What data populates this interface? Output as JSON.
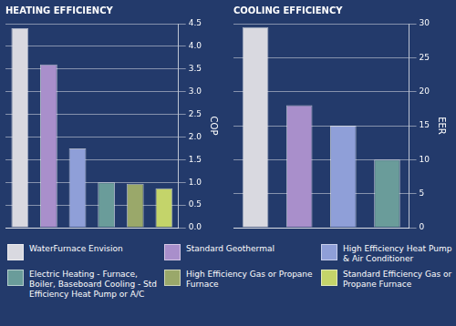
{
  "chart_data": [
    {
      "type": "bar",
      "title": "HEATING EFFICIENCY",
      "y_label": "COP",
      "categories": [
        "WaterFurnace Envision",
        "Standard Geothermal",
        "High Efficiency Heat Pump & Air Conditioner",
        "Electric Heating - Furnace, Boiler, Baseboard Cooling - Std Efficiency Heat Pump or A/C",
        "High Efficiency Gas or Propane Furnace",
        "Standard Efficiency Gas or Propane Furnace"
      ],
      "values": [
        4.4,
        3.6,
        1.75,
        1.0,
        0.97,
        0.87
      ],
      "colors": [
        "#d9d9e0",
        "#a98fcb",
        "#8f9fd8",
        "#6a9c9a",
        "#9aa86a",
        "#c4d46a"
      ],
      "ylim": [
        0,
        4.5
      ],
      "yticks": [
        {
          "value": 0,
          "label": "0.0"
        },
        0.5,
        {
          "value": 1,
          "label": "1.0"
        },
        1.5,
        {
          "value": 2,
          "label": "2.0"
        },
        2.5,
        {
          "value": 3,
          "label": "3.0"
        },
        3.5,
        {
          "value": 4,
          "label": "4.0"
        },
        4.5
      ],
      "grid": true,
      "tick_labels": "y",
      "legend": "bottom"
    },
    {
      "type": "bar",
      "title": "COOLING EFFICIENCY",
      "y_label": "EER",
      "categories": [
        "WaterFurnace Envision",
        "Standard Geothermal",
        "High Efficiency Heat Pump & Air Conditioner",
        "Electric Heating - Furnace, Boiler, Baseboard Cooling - Std Efficiency Heat Pump or A/C"
      ],
      "values": [
        29.5,
        18,
        15,
        10
      ],
      "colors": [
        "#d9d9e0",
        "#a98fcb",
        "#8f9fd8",
        "#6a9c9a"
      ],
      "ylim": [
        0,
        30
      ],
      "yticks": [
        0,
        5,
        10,
        15,
        20,
        25,
        30
      ],
      "grid": true,
      "tick_labels": "y",
      "legend": "bottom"
    }
  ]
}
